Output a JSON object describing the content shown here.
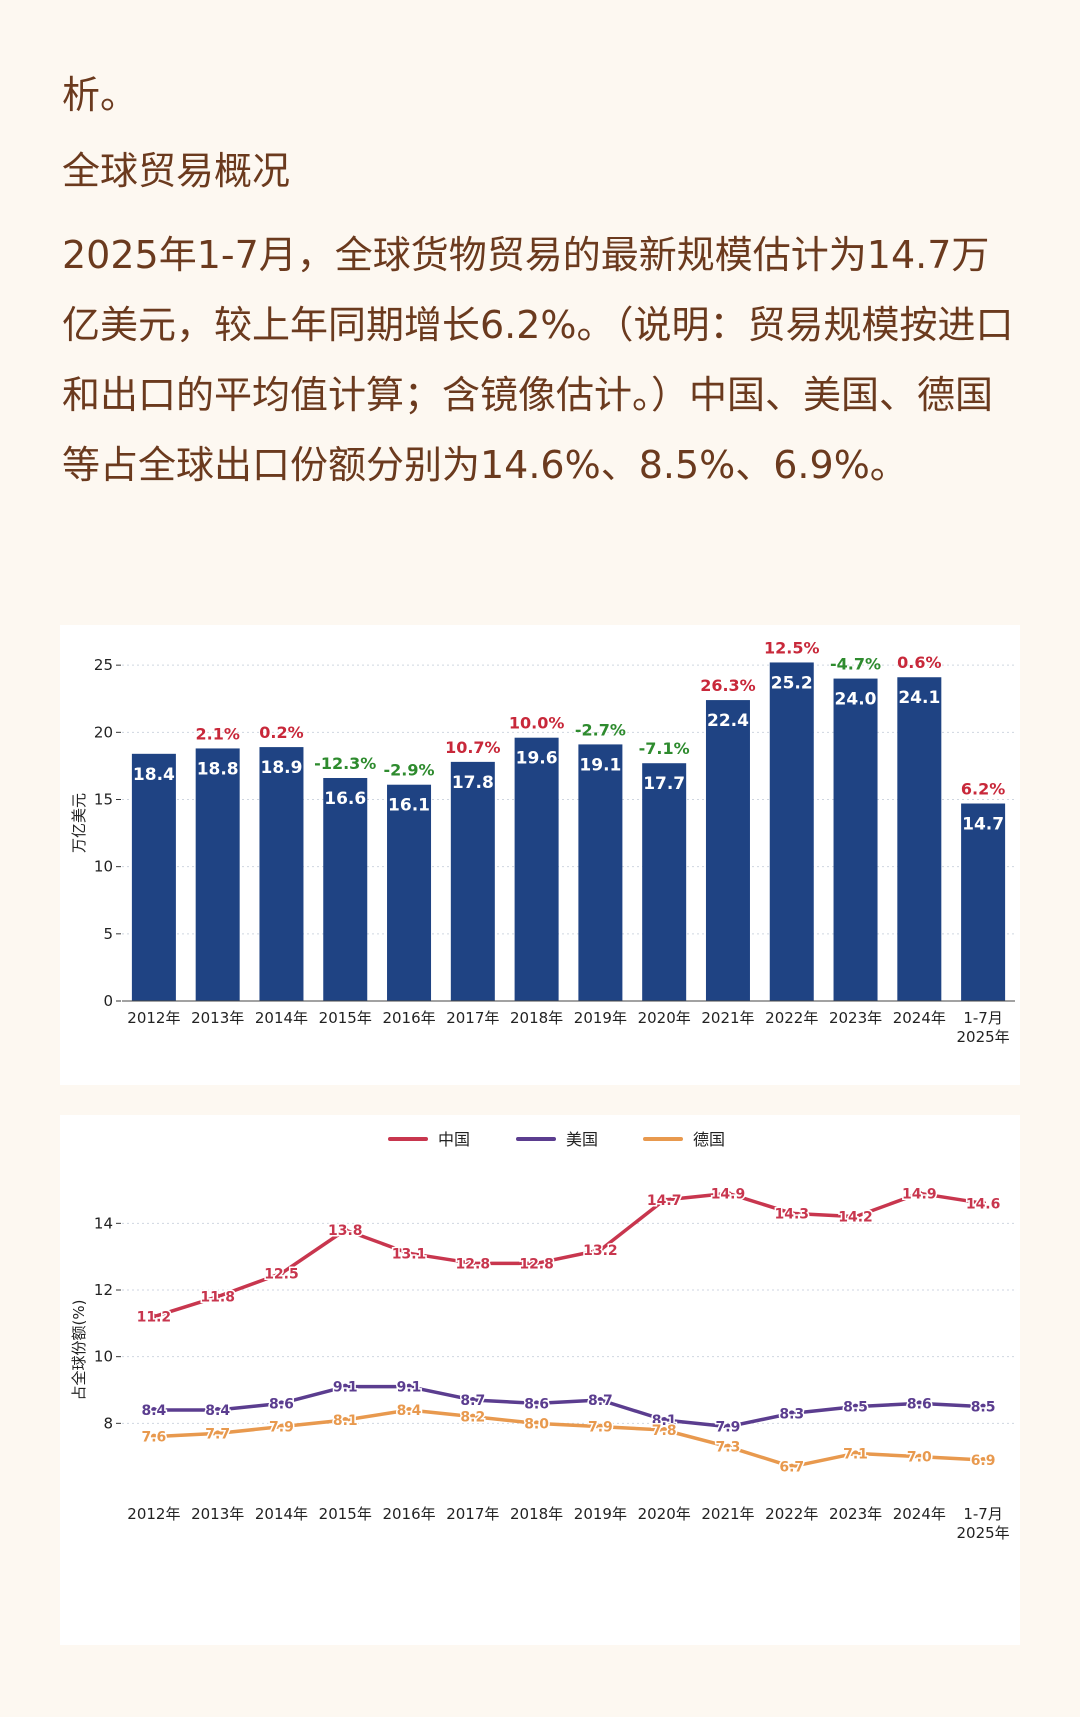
{
  "article": {
    "fragment": "析。",
    "section_title": "全球贸易概况",
    "paragraph": "2025年1-7月，全球货物贸易的最新规模估计为14.7万亿美元，较上年同期增长6.2%。（说明：贸易规模按进口和出口的平均值计算；含镜像估计。）中国、美国、德国等占全球出口份额分别为14.6%、8.5%、6.9%。"
  },
  "chart_data": [
    {
      "type": "bar",
      "title": "",
      "xlabel": "",
      "ylabel": "万亿美元",
      "ylim": [
        0,
        26.5
      ],
      "yticks": [
        0,
        5,
        10,
        15,
        20,
        25
      ],
      "grid": "horizontal dotted",
      "categories": [
        "2012年",
        "2013年",
        "2014年",
        "2015年",
        "2016年",
        "2017年",
        "2018年",
        "2019年",
        "2020年",
        "2021年",
        "2022年",
        "2023年",
        "2024年",
        "1-7月\n2025年"
      ],
      "values": [
        18.4,
        18.8,
        18.9,
        16.6,
        16.1,
        17.8,
        19.6,
        19.1,
        17.7,
        22.4,
        25.2,
        24.0,
        24.1,
        14.7
      ],
      "value_labels": [
        "18.4",
        "18.8",
        "18.9",
        "16.6",
        "16.1",
        "17.8",
        "19.6",
        "19.1",
        "17.7",
        "22.4",
        "25.2",
        "24.0",
        "24.1",
        "14.7"
      ],
      "growth_labels": [
        "",
        "2.1%",
        "0.2%",
        "-12.3%",
        "-2.9%",
        "10.7%",
        "10.0%",
        "-2.7%",
        "-7.1%",
        "26.3%",
        "12.5%",
        "-4.7%",
        "0.6%",
        "6.2%"
      ],
      "colors": {
        "bar": "#1f4383",
        "positive": "#c8283a",
        "negative": "#2e8b2e",
        "value_text": "#ffffff"
      }
    },
    {
      "type": "line",
      "title": "",
      "xlabel": "",
      "ylabel": "占全球份额(%)",
      "ylim": [
        6.0,
        15.6
      ],
      "yticks": [
        8,
        10,
        12,
        14
      ],
      "grid": "horizontal dotted",
      "legend": "top-center",
      "categories": [
        "2012年",
        "2013年",
        "2014年",
        "2015年",
        "2016年",
        "2017年",
        "2018年",
        "2019年",
        "2020年",
        "2021年",
        "2022年",
        "2023年",
        "2024年",
        "1-7月\n2025年"
      ],
      "series": [
        {
          "name": "中国",
          "color": "#c8364e",
          "values": [
            11.2,
            11.8,
            12.5,
            13.8,
            13.1,
            12.8,
            12.8,
            13.2,
            14.7,
            14.9,
            14.3,
            14.2,
            14.9,
            14.6
          ]
        },
        {
          "name": "美国",
          "color": "#5b3d8f",
          "values": [
            8.4,
            8.4,
            8.6,
            9.1,
            9.1,
            8.7,
            8.6,
            8.7,
            8.1,
            7.9,
            8.3,
            8.5,
            8.6,
            8.5
          ]
        },
        {
          "name": "德国",
          "color": "#e8994e",
          "values": [
            7.6,
            7.7,
            7.9,
            8.1,
            8.4,
            8.2,
            8.0,
            7.9,
            7.8,
            7.3,
            6.7,
            7.1,
            7.0,
            6.9
          ]
        }
      ]
    }
  ]
}
